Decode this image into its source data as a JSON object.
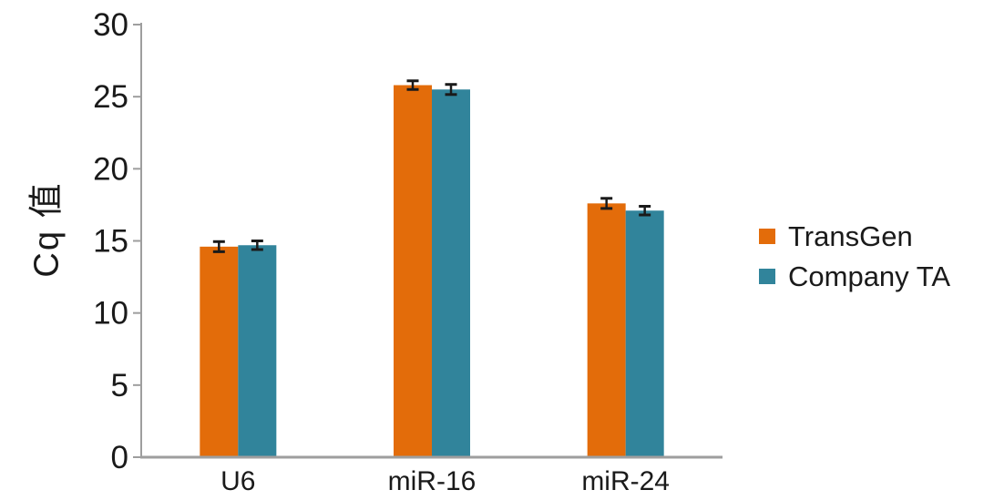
{
  "figure": {
    "background": "#FFFFFF"
  },
  "chart_data": {
    "type": "bar",
    "title": "",
    "ylabel": "Cq 值",
    "xlabel": "",
    "categories": [
      "U6",
      "miR-16",
      "miR-24"
    ],
    "series": [
      {
        "name": "TransGen",
        "color": "#E36C0A",
        "values": [
          14.6,
          25.8,
          17.6
        ],
        "errors": [
          0.35,
          0.3,
          0.35
        ]
      },
      {
        "name": "Company TA",
        "color": "#31849B",
        "values": [
          14.7,
          25.5,
          17.1
        ],
        "errors": [
          0.3,
          0.35,
          0.3
        ]
      }
    ],
    "ylim": [
      0,
      30
    ],
    "yticks": [
      0,
      5,
      10,
      15,
      20,
      25,
      30
    ],
    "grid": false,
    "error_bars": true,
    "legend_position": "right",
    "axis_color": "#9E9E9E",
    "error_bar_color": "#1A1A1A",
    "text_color": "#1A1A1A"
  }
}
